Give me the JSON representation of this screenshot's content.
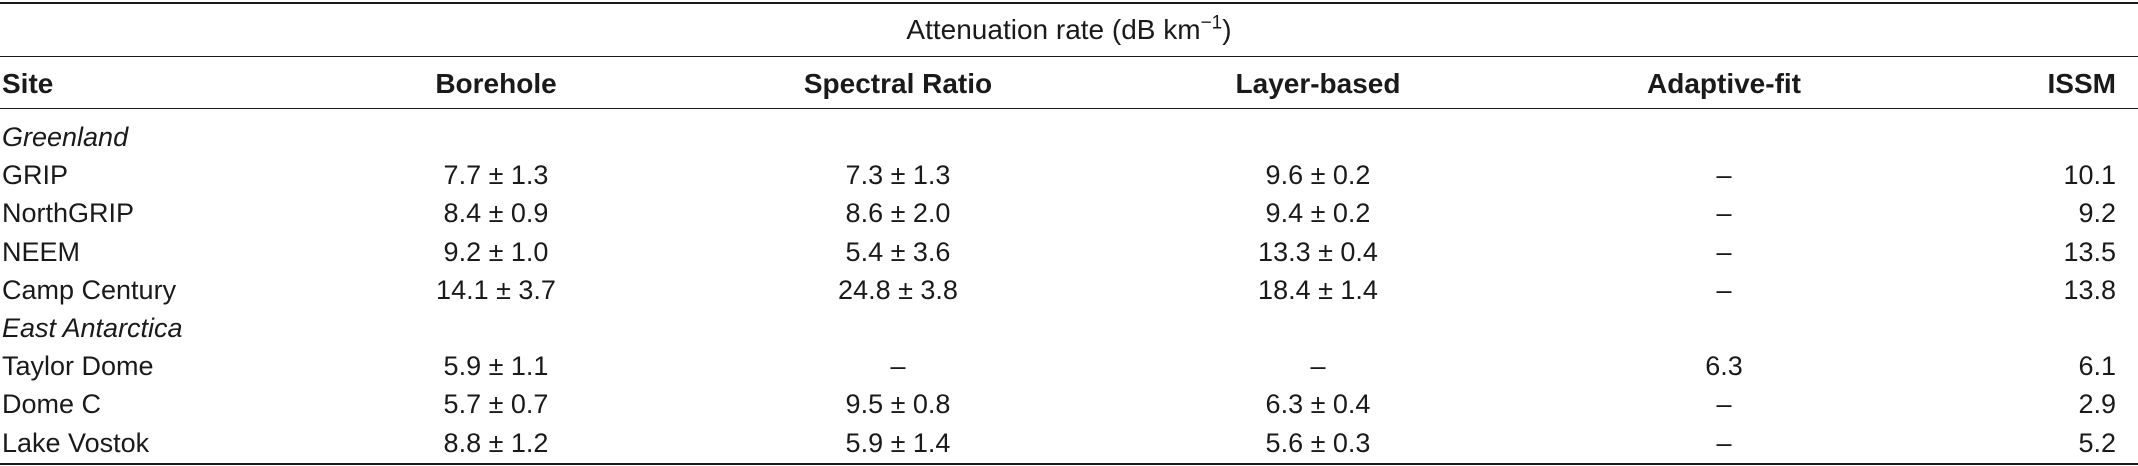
{
  "table": {
    "spanner": {
      "label": "Attenuation rate (dB km",
      "exponent": "−1",
      "close": ")"
    },
    "columns": [
      "Site",
      "Borehole",
      "Spectral Ratio",
      "Layer-based",
      "Adaptive-fit",
      "ISSM"
    ],
    "rows": [
      {
        "type": "group",
        "site": "Greenland"
      },
      {
        "type": "data",
        "site": "GRIP",
        "borehole": "7.7 ± 1.3",
        "spectral_ratio": "7.3 ± 1.3",
        "layer_based": "9.6 ± 0.2",
        "adaptive_fit": "–",
        "issm": "10.1"
      },
      {
        "type": "data",
        "site": "NorthGRIP",
        "borehole": "8.4 ± 0.9",
        "spectral_ratio": "8.6 ± 2.0",
        "layer_based": "9.4 ± 0.2",
        "adaptive_fit": "–",
        "issm": "9.2"
      },
      {
        "type": "data",
        "site": "NEEM",
        "borehole": "9.2 ± 1.0",
        "spectral_ratio": "5.4 ± 3.6",
        "layer_based": "13.3 ± 0.4",
        "adaptive_fit": "–",
        "issm": "13.5"
      },
      {
        "type": "data",
        "site": "Camp Century",
        "borehole": "14.1 ± 3.7",
        "spectral_ratio": "24.8 ± 3.8",
        "layer_based": "18.4 ± 1.4",
        "adaptive_fit": "–",
        "issm": "13.8"
      },
      {
        "type": "group",
        "site": "East Antarctica"
      },
      {
        "type": "data",
        "site": "Taylor Dome",
        "borehole": "5.9 ± 1.1",
        "spectral_ratio": "–",
        "layer_based": "–",
        "adaptive_fit": "6.3",
        "issm": "6.1"
      },
      {
        "type": "data",
        "site": "Dome C",
        "borehole": "5.7 ± 0.7",
        "spectral_ratio": "9.5 ± 0.8",
        "layer_based": "6.3 ± 0.4",
        "adaptive_fit": "–",
        "issm": "2.9"
      },
      {
        "type": "data",
        "site": "Lake Vostok",
        "borehole": "8.8 ± 1.2",
        "spectral_ratio": "5.9 ± 1.4",
        "layer_based": "5.6 ± 0.3",
        "adaptive_fit": "–",
        "issm": "5.2"
      }
    ]
  }
}
